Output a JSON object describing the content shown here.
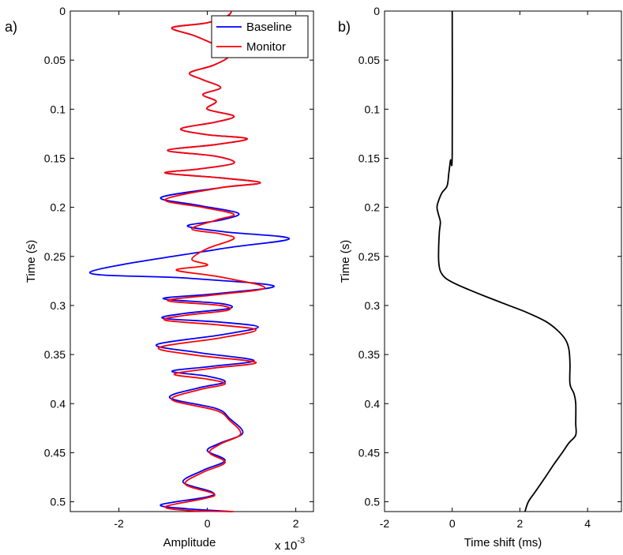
{
  "chart_data": [
    {
      "type": "line",
      "panel_label": "a)",
      "xlabel": "Amplitude",
      "ylabel": "Time (s)",
      "x_multiplier": "x 10",
      "x_multiplier_exp": "-3",
      "xlim": [
        -3.1,
        2.4
      ],
      "ylim": [
        0,
        0.51
      ],
      "y_reversed": true,
      "xticks": [
        -2,
        0,
        2
      ],
      "xtick_labels": [
        "-2",
        "0",
        "2"
      ],
      "yticks": [
        0,
        0.05,
        0.1,
        0.15,
        0.2,
        0.25,
        0.3,
        0.35,
        0.4,
        0.45,
        0.5
      ],
      "ytick_labels": [
        "0",
        "0.05",
        "0.1",
        "0.15",
        "0.2",
        "0.25",
        "0.3",
        "0.35",
        "0.4",
        "0.45",
        "0.5"
      ],
      "legend_position": "top-right",
      "series": [
        {
          "name": "Baseline",
          "color": "#0000ff",
          "points": [
            [
              0.55,
              0.0
            ],
            [
              0.45,
              0.005
            ],
            [
              0.0,
              0.012
            ],
            [
              -0.8,
              0.017
            ],
            [
              -0.3,
              0.025
            ],
            [
              0.2,
              0.035
            ],
            [
              0.5,
              0.045
            ],
            [
              0.15,
              0.055
            ],
            [
              -0.4,
              0.063
            ],
            [
              -0.1,
              0.07
            ],
            [
              0.3,
              0.078
            ],
            [
              -0.1,
              0.085
            ],
            [
              0.2,
              0.092
            ],
            [
              0.0,
              0.1
            ],
            [
              0.6,
              0.107
            ],
            [
              0.2,
              0.113
            ],
            [
              -0.6,
              0.12
            ],
            [
              0.0,
              0.126
            ],
            [
              0.9,
              0.13
            ],
            [
              0.2,
              0.136
            ],
            [
              -0.9,
              0.142
            ],
            [
              0.2,
              0.148
            ],
            [
              0.6,
              0.155
            ],
            [
              -0.2,
              0.161
            ],
            [
              -0.95,
              0.165
            ],
            [
              0.3,
              0.17
            ],
            [
              1.2,
              0.175
            ],
            [
              0.3,
              0.18
            ],
            [
              -1.05,
              0.19
            ],
            [
              -0.2,
              0.198
            ],
            [
              0.7,
              0.206
            ],
            [
              0.3,
              0.213
            ],
            [
              -0.45,
              0.219
            ],
            [
              0.4,
              0.225
            ],
            [
              1.85,
              0.232
            ],
            [
              0.2,
              0.243
            ],
            [
              -2.65,
              0.266
            ],
            [
              -0.5,
              0.272
            ],
            [
              1.5,
              0.28
            ],
            [
              0.2,
              0.288
            ],
            [
              -1.0,
              0.293
            ],
            [
              0.3,
              0.298
            ],
            [
              0.5,
              0.303
            ],
            [
              -0.5,
              0.308
            ],
            [
              -1.0,
              0.313
            ],
            [
              0.3,
              0.317
            ],
            [
              1.15,
              0.322
            ],
            [
              0.3,
              0.33
            ],
            [
              -1.15,
              0.34
            ],
            [
              -0.2,
              0.348
            ],
            [
              1.05,
              0.356
            ],
            [
              0.1,
              0.362
            ],
            [
              -0.8,
              0.367
            ],
            [
              0.0,
              0.372
            ],
            [
              0.4,
              0.378
            ],
            [
              -0.2,
              0.384
            ],
            [
              -0.85,
              0.394
            ],
            [
              0.2,
              0.405
            ],
            [
              0.5,
              0.415
            ],
            [
              0.8,
              0.43
            ],
            [
              0.3,
              0.44
            ],
            [
              0.0,
              0.448
            ],
            [
              0.4,
              0.458
            ],
            [
              -0.1,
              0.468
            ],
            [
              -0.55,
              0.48
            ],
            [
              0.1,
              0.49
            ],
            [
              0.0,
              0.495
            ],
            [
              -1.05,
              0.503
            ],
            [
              -0.5,
              0.507
            ],
            [
              0.55,
              0.51
            ]
          ]
        },
        {
          "name": "Monitor",
          "color": "#ff0000",
          "points": [
            [
              0.55,
              0.0
            ],
            [
              0.45,
              0.005
            ],
            [
              0.0,
              0.012
            ],
            [
              -0.8,
              0.017
            ],
            [
              -0.3,
              0.025
            ],
            [
              0.2,
              0.035
            ],
            [
              0.5,
              0.045
            ],
            [
              0.15,
              0.055
            ],
            [
              -0.4,
              0.063
            ],
            [
              -0.1,
              0.07
            ],
            [
              0.3,
              0.078
            ],
            [
              -0.1,
              0.085
            ],
            [
              0.2,
              0.092
            ],
            [
              0.0,
              0.1
            ],
            [
              0.6,
              0.107
            ],
            [
              0.2,
              0.113
            ],
            [
              -0.6,
              0.12
            ],
            [
              0.0,
              0.126
            ],
            [
              0.9,
              0.13
            ],
            [
              0.2,
              0.136
            ],
            [
              -0.9,
              0.142
            ],
            [
              0.2,
              0.148
            ],
            [
              0.6,
              0.155
            ],
            [
              -0.2,
              0.161
            ],
            [
              -0.95,
              0.165
            ],
            [
              0.3,
              0.17
            ],
            [
              1.2,
              0.175
            ],
            [
              0.3,
              0.18
            ],
            [
              -0.95,
              0.192
            ],
            [
              -0.1,
              0.2
            ],
            [
              0.6,
              0.207
            ],
            [
              0.2,
              0.213
            ],
            [
              -0.35,
              0.222
            ],
            [
              0.3,
              0.227
            ],
            [
              0.6,
              0.232
            ],
            [
              0.0,
              0.242
            ],
            [
              -0.35,
              0.253
            ],
            [
              0.0,
              0.259
            ],
            [
              -0.7,
              0.264
            ],
            [
              0.3,
              0.271
            ],
            [
              1.3,
              0.282
            ],
            [
              0.2,
              0.289
            ],
            [
              -0.9,
              0.295
            ],
            [
              0.3,
              0.3
            ],
            [
              0.45,
              0.305
            ],
            [
              -0.5,
              0.31
            ],
            [
              -0.95,
              0.315
            ],
            [
              0.3,
              0.32
            ],
            [
              1.1,
              0.325
            ],
            [
              0.3,
              0.333
            ],
            [
              -1.1,
              0.343
            ],
            [
              -0.2,
              0.351
            ],
            [
              1.1,
              0.358
            ],
            [
              0.1,
              0.364
            ],
            [
              -0.75,
              0.37
            ],
            [
              0.0,
              0.375
            ],
            [
              0.4,
              0.38
            ],
            [
              -0.2,
              0.386
            ],
            [
              -0.8,
              0.396
            ],
            [
              0.2,
              0.407
            ],
            [
              0.5,
              0.417
            ],
            [
              0.75,
              0.431
            ],
            [
              0.3,
              0.441
            ],
            [
              0.05,
              0.45
            ],
            [
              0.4,
              0.46
            ],
            [
              -0.1,
              0.47
            ],
            [
              -0.5,
              0.482
            ],
            [
              0.15,
              0.492
            ],
            [
              -0.1,
              0.497
            ],
            [
              -0.95,
              0.505
            ],
            [
              -0.4,
              0.509
            ],
            [
              0.6,
              0.51
            ]
          ]
        }
      ]
    },
    {
      "type": "line",
      "panel_label": "b)",
      "xlabel": "Time shift (ms)",
      "ylabel": "Time (s)",
      "xlim": [
        -2,
        5
      ],
      "ylim": [
        0,
        0.51
      ],
      "y_reversed": true,
      "xticks": [
        -2,
        0,
        2,
        4
      ],
      "xtick_labels": [
        "-2",
        "0",
        "2",
        "4"
      ],
      "yticks": [
        0,
        0.05,
        0.1,
        0.15,
        0.2,
        0.25,
        0.3,
        0.35,
        0.4,
        0.45,
        0.5
      ],
      "ytick_labels": [
        "0",
        "0.05",
        "0.1",
        "0.15",
        "0.2",
        "0.25",
        "0.3",
        "0.35",
        "0.4",
        "0.45",
        "0.5"
      ],
      "series": [
        {
          "color": "#000000",
          "points": [
            [
              0.0,
              0.0
            ],
            [
              0.0,
              0.145
            ],
            [
              -0.05,
              0.152
            ],
            [
              -0.1,
              0.165
            ],
            [
              -0.15,
              0.178
            ],
            [
              -0.3,
              0.185
            ],
            [
              -0.4,
              0.193
            ],
            [
              -0.45,
              0.2
            ],
            [
              -0.4,
              0.208
            ],
            [
              -0.35,
              0.215
            ],
            [
              -0.38,
              0.225
            ],
            [
              -0.4,
              0.24
            ],
            [
              -0.4,
              0.255
            ],
            [
              -0.35,
              0.265
            ],
            [
              -0.2,
              0.272
            ],
            [
              0.1,
              0.278
            ],
            [
              0.5,
              0.284
            ],
            [
              1.0,
              0.291
            ],
            [
              1.6,
              0.299
            ],
            [
              2.2,
              0.307
            ],
            [
              2.75,
              0.316
            ],
            [
              3.1,
              0.325
            ],
            [
              3.35,
              0.335
            ],
            [
              3.45,
              0.345
            ],
            [
              3.48,
              0.36
            ],
            [
              3.48,
              0.38
            ],
            [
              3.6,
              0.39
            ],
            [
              3.65,
              0.4
            ],
            [
              3.65,
              0.42
            ],
            [
              3.65,
              0.432
            ],
            [
              3.45,
              0.44
            ],
            [
              3.25,
              0.45
            ],
            [
              3.0,
              0.462
            ],
            [
              2.75,
              0.475
            ],
            [
              2.45,
              0.49
            ],
            [
              2.25,
              0.5
            ],
            [
              2.15,
              0.51
            ]
          ]
        }
      ]
    }
  ]
}
